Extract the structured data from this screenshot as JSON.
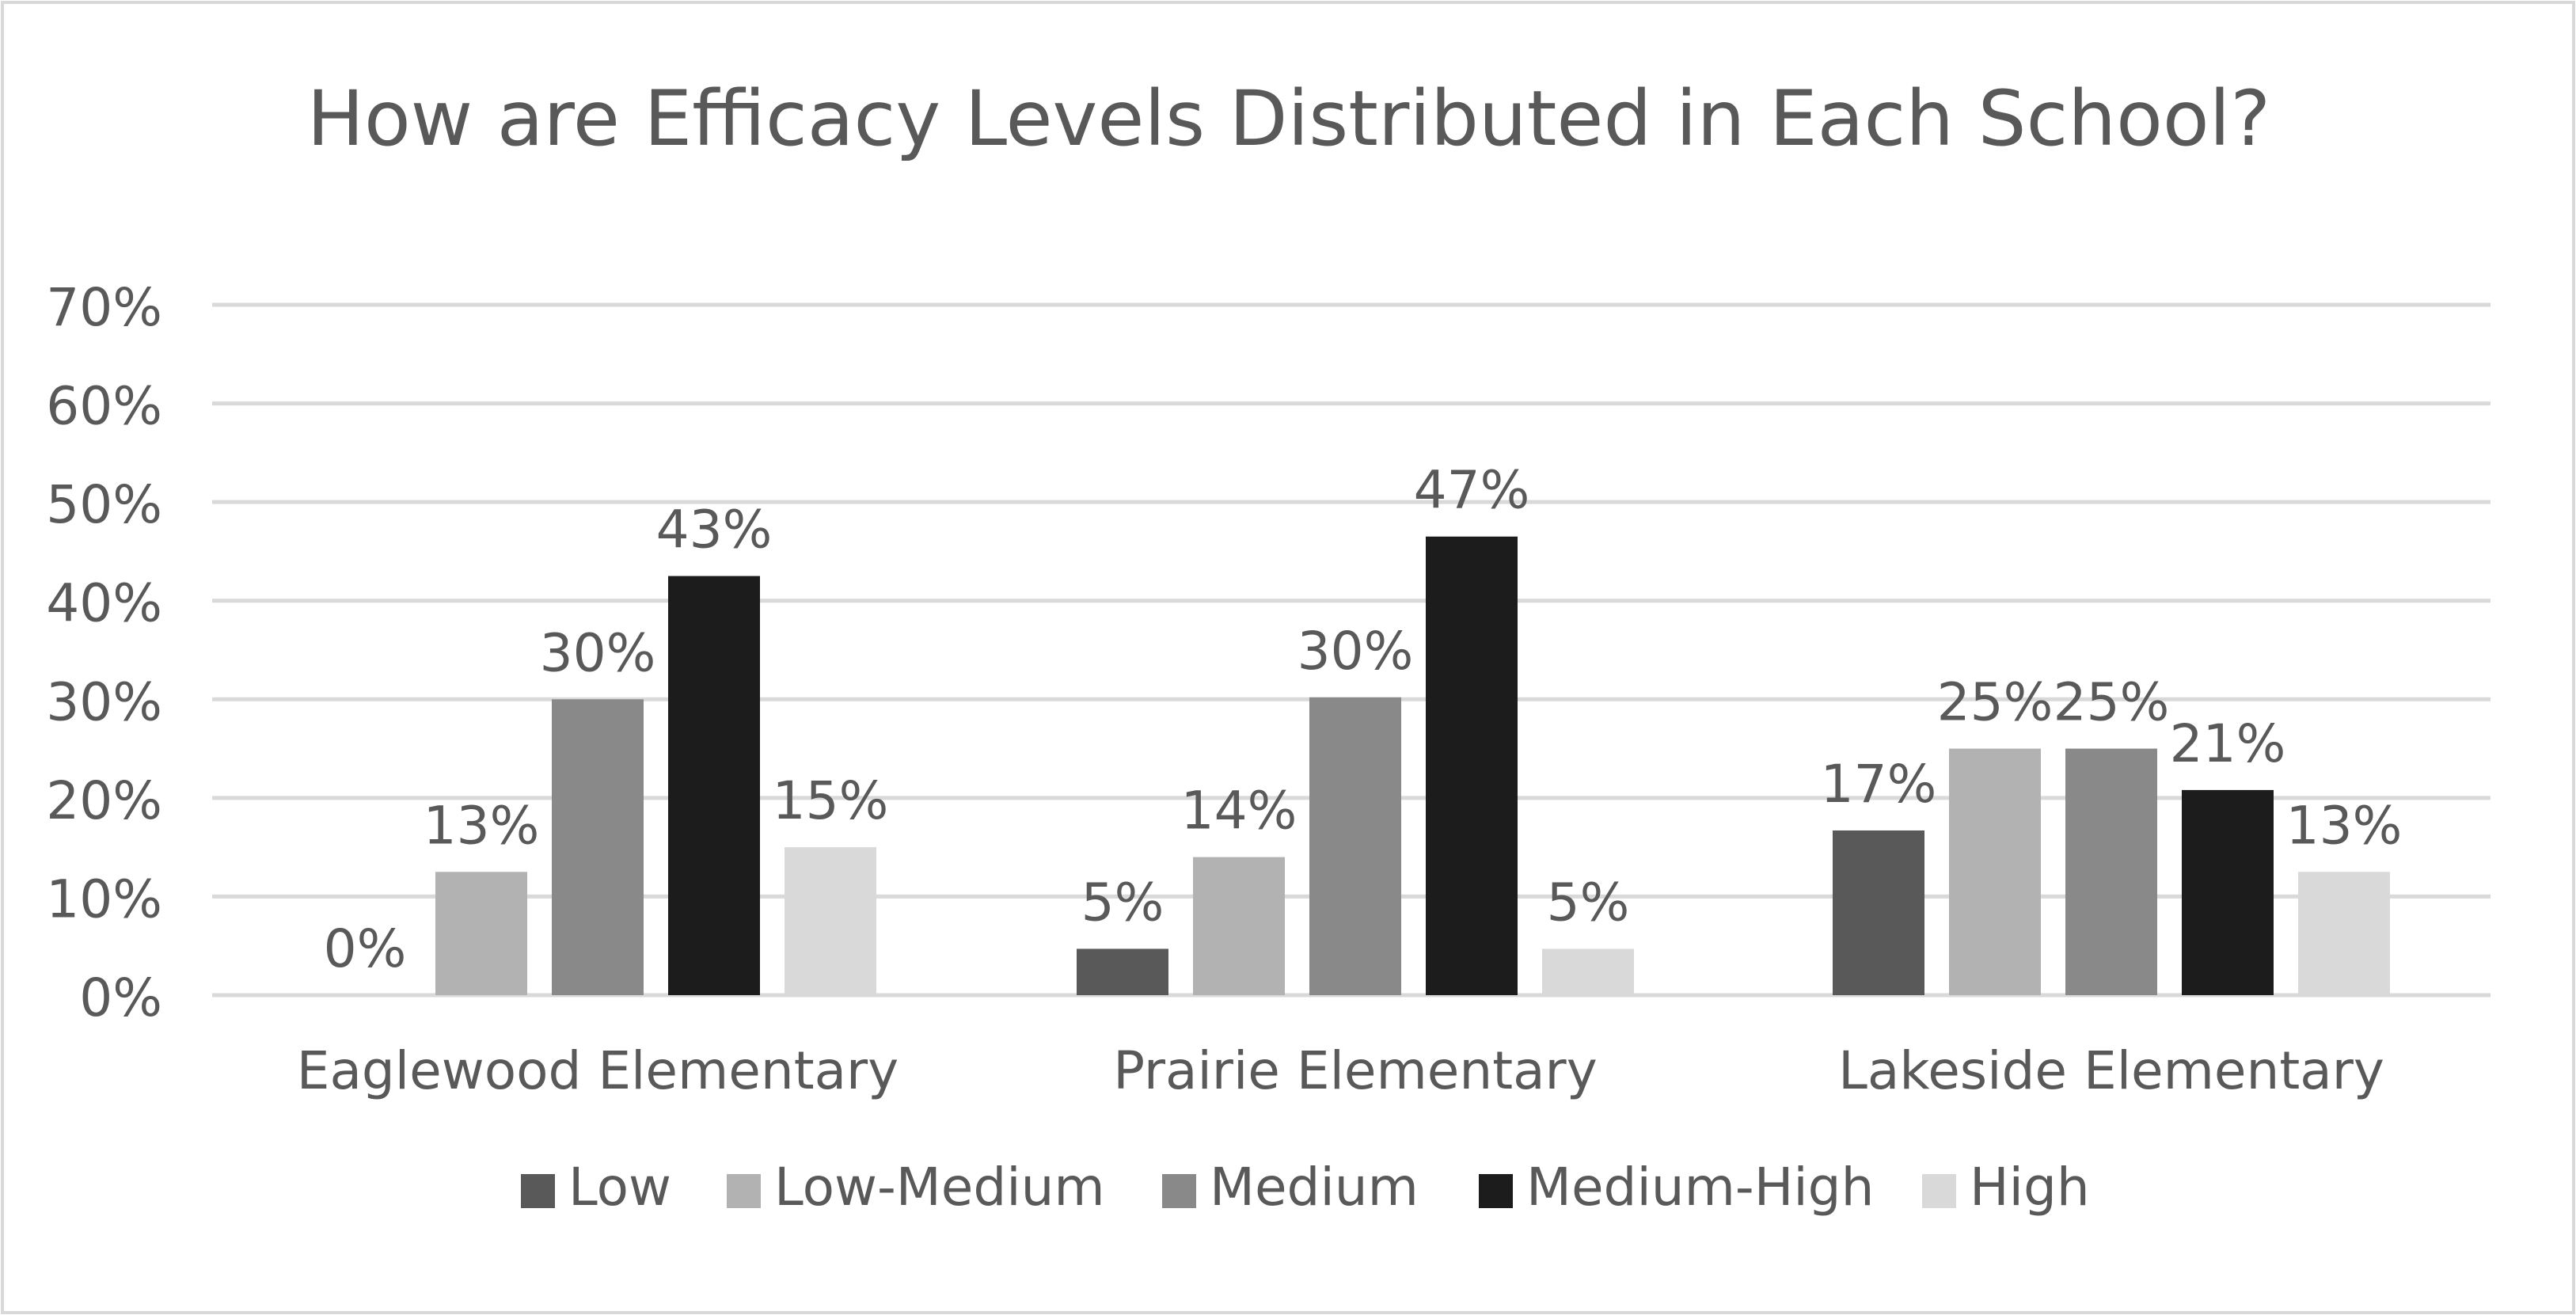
{
  "chart_data": {
    "type": "bar",
    "title": "How are Efficacy Levels Distributed in Each School?",
    "xlabel": "",
    "ylabel": "",
    "ylim": [
      0,
      0.7
    ],
    "y_ticks": [
      {
        "value": 0.0,
        "label": "0%"
      },
      {
        "value": 0.1,
        "label": "10%"
      },
      {
        "value": 0.2,
        "label": "20%"
      },
      {
        "value": 0.3,
        "label": "30%"
      },
      {
        "value": 0.4,
        "label": "40%"
      },
      {
        "value": 0.5,
        "label": "50%"
      },
      {
        "value": 0.6,
        "label": "60%"
      },
      {
        "value": 0.7,
        "label": "70%"
      }
    ],
    "grid": true,
    "legend_position": "bottom",
    "categories": [
      "Eaglewood Elementary",
      "Prairie Elementary",
      "Lakeside Elementary"
    ],
    "series": [
      {
        "name": "Low",
        "color": "#595959",
        "values": [
          0.0,
          0.047,
          0.167
        ],
        "labels": [
          "0%",
          "5%",
          "17%"
        ]
      },
      {
        "name": "Low-Medium",
        "color": "#b2b2b2",
        "values": [
          0.125,
          0.14,
          0.25
        ],
        "labels": [
          "13%",
          "14%",
          "25%"
        ]
      },
      {
        "name": "Medium",
        "color": "#898989",
        "values": [
          0.3,
          0.302,
          0.25
        ],
        "labels": [
          "30%",
          "30%",
          "25%"
        ]
      },
      {
        "name": "Medium-High",
        "color": "#1c1c1c",
        "values": [
          0.425,
          0.465,
          0.208
        ],
        "labels": [
          "43%",
          "47%",
          "21%"
        ]
      },
      {
        "name": "High",
        "color": "#d9d9d9",
        "values": [
          0.15,
          0.047,
          0.125
        ],
        "labels": [
          "15%",
          "5%",
          "13%"
        ]
      }
    ]
  },
  "colors": {
    "gridline": "#d9d9d9",
    "text": "#595959",
    "border": "#d9d9d9",
    "background": "#ffffff"
  }
}
